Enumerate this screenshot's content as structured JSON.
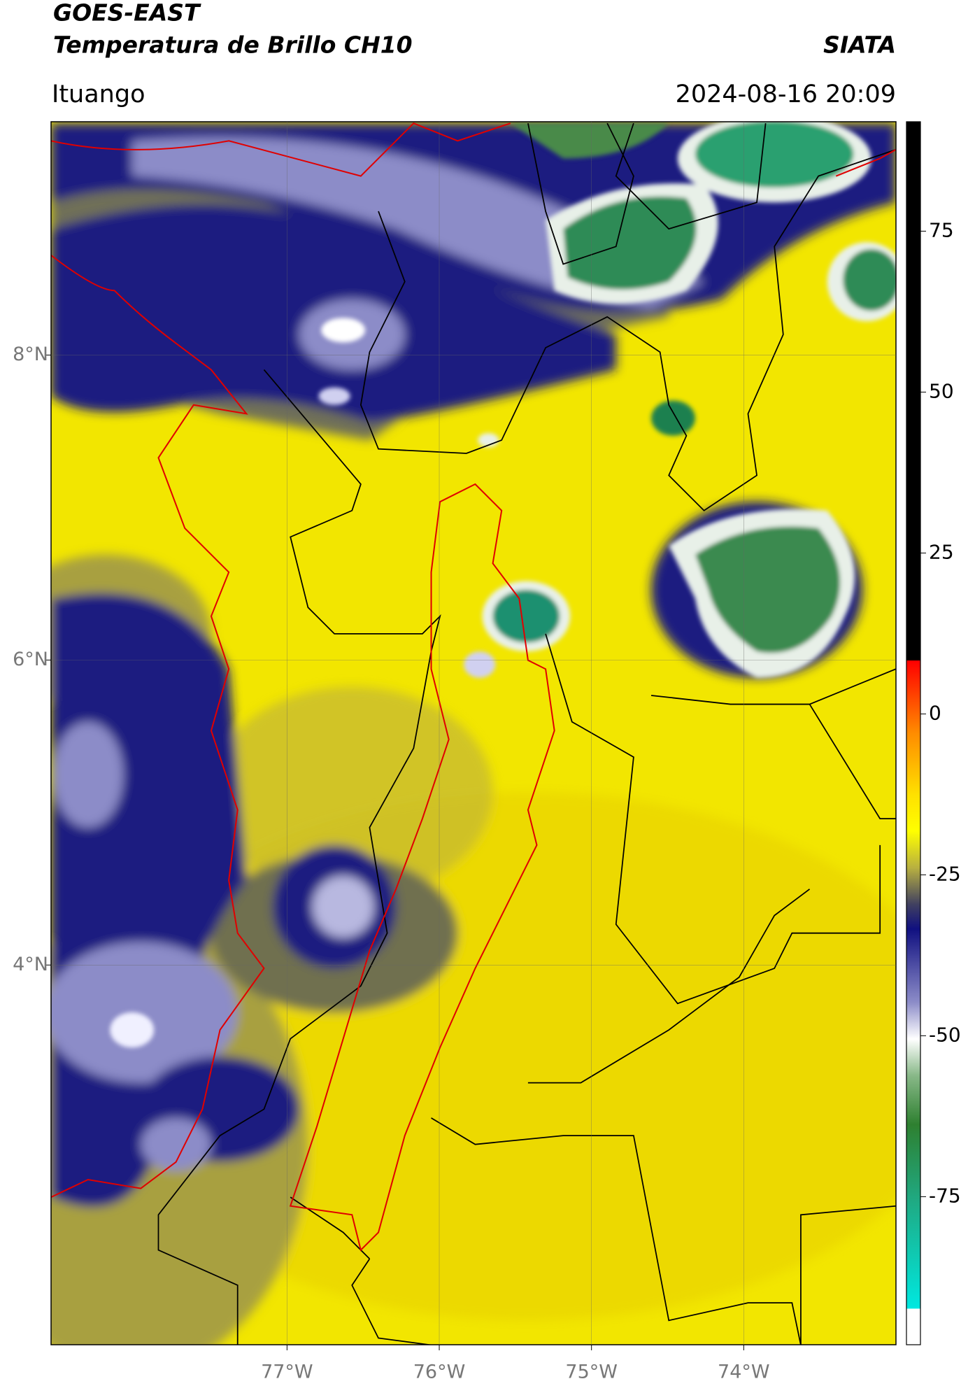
{
  "header": {
    "title": "GOES-EAST",
    "subtitle": "Temperatura de Brillo CH10",
    "organization": "SIATA",
    "location": "Ituango",
    "datetime": "2024-08-16 20:09"
  },
  "map": {
    "xlim": [
      -78.55,
      -73.0
    ],
    "ylim": [
      1.51,
      9.53
    ],
    "xticks": [
      {
        "value": -77,
        "label": "77°W"
      },
      {
        "value": -76,
        "label": "76°W"
      },
      {
        "value": -75,
        "label": "75°W"
      },
      {
        "value": -74,
        "label": "74°W"
      }
    ],
    "yticks": [
      {
        "value": 8,
        "label": "8°N"
      },
      {
        "value": 6,
        "label": "6°N"
      },
      {
        "value": 4,
        "label": "4°N"
      }
    ],
    "grid": true
  },
  "colorbar": {
    "ylim": [
      -98,
      92
    ],
    "yticks": [
      75,
      50,
      25,
      0,
      -25,
      -50,
      -75
    ]
  }
}
